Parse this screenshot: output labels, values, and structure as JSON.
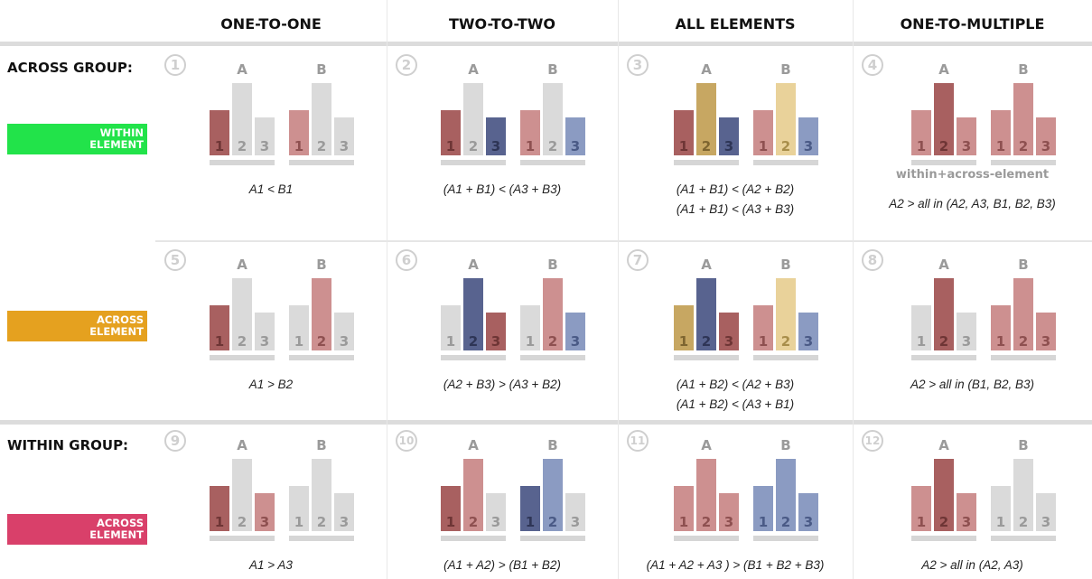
{
  "columns": [
    "ONE-TO-ONE",
    "TWO-TO-TWO",
    "ALL ELEMENTS",
    "ONE-TO-MULTIPLE"
  ],
  "rows": {
    "across_group": "ACROSS GROUP:",
    "within_group": "WITHIN GROUP:"
  },
  "tags": [
    {
      "text": "WITHIN\nELEMENT",
      "color": "#22e34a"
    },
    {
      "text": "ACROSS\nELEMENT",
      "color": "#e5a11f"
    },
    {
      "text": "ACROSS\nELEMENT",
      "color": "#d9406a"
    }
  ],
  "palette": {
    "G": "#dadada",
    "R": "#a86060",
    "P": "#cd9090",
    "N": "#58638f",
    "L": "#8b9bc2",
    "Y": "#c7a762",
    "y": "#e9d29a"
  },
  "group_labels": [
    "A",
    "B"
  ],
  "bar_labels": [
    "1",
    "2",
    "3"
  ],
  "cells": [
    {
      "n": "1",
      "A": "RGG",
      "B": "PGG",
      "formula": [
        "A1 < B1"
      ]
    },
    {
      "n": "2",
      "A": "RGN",
      "B": "PGL",
      "formula": [
        "(A1 + B1) < (A3 + B3)"
      ]
    },
    {
      "n": "3",
      "A": "RYN",
      "B": "PyL",
      "formula": [
        "(A1 + B1) < (A2  + B2)",
        "(A1 + B1) < (A3 + B3)"
      ]
    },
    {
      "n": "4",
      "A": "PRP",
      "B": "PPP",
      "note": "within+across-element",
      "formula": [
        "A2 > all in (A2, A3, B1, B2, B3)"
      ]
    },
    {
      "n": "5",
      "A": "RGG",
      "B": "GPG",
      "formula": [
        "A1 > B2"
      ]
    },
    {
      "n": "6",
      "A": "GNR",
      "B": "GPL",
      "formula": [
        "(A2 + B3) > (A3 + B2)"
      ]
    },
    {
      "n": "7",
      "A": "YNR",
      "B": "PyL",
      "formula": [
        "(A1 + B2) < (A2  + B3)",
        "(A1 + B2) < (A3 + B1)"
      ]
    },
    {
      "n": "8",
      "A": "GRG",
      "B": "PPP",
      "formula": [
        "A2 > all in (B1, B2, B3)"
      ]
    },
    {
      "n": "9",
      "A": "RGP",
      "B": "GGG",
      "formula": [
        "A1 > A3"
      ]
    },
    {
      "n": "10",
      "A": "RPG",
      "B": "NLG",
      "formula": [
        "(A1 + A2) > (B1 + B2)"
      ]
    },
    {
      "n": "11",
      "A": "PPP",
      "B": "LLL",
      "formula": [
        "(A1 + A2 + A3 ) > (B1 + B2 + B3)"
      ]
    },
    {
      "n": "12",
      "A": "PRP",
      "B": "GGG",
      "formula": [
        "A2 > all in (A2, A3)"
      ]
    }
  ]
}
